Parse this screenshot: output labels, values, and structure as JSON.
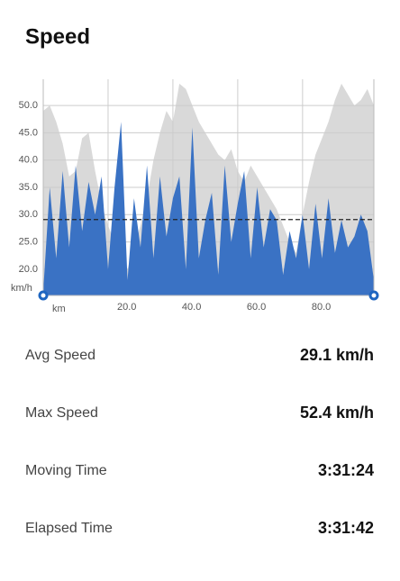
{
  "header": {
    "title": "Speed"
  },
  "chart_data": {
    "type": "area",
    "y_label": "km/h",
    "x_label": "km",
    "x": [
      0,
      2,
      4,
      6,
      8,
      10,
      12,
      14,
      16,
      18,
      20,
      22,
      24,
      26,
      28,
      30,
      32,
      34,
      36,
      38,
      40,
      42,
      44,
      46,
      48,
      50,
      52,
      54,
      56,
      58,
      60,
      62,
      64,
      66,
      68,
      70,
      72,
      74,
      76,
      78,
      80,
      82,
      84,
      86,
      88,
      90,
      92,
      94,
      96,
      98,
      100,
      102
    ],
    "series": [
      {
        "color": "#d9d9d9",
        "values": [
          49,
          50,
          47,
          43,
          37,
          38,
          44,
          45,
          38,
          32,
          28,
          25,
          22,
          20,
          24,
          28,
          33,
          40,
          45,
          49,
          47,
          54,
          53,
          50,
          47,
          45,
          43,
          41,
          40,
          42,
          38,
          36,
          39,
          37,
          35,
          33,
          31,
          28,
          25,
          23,
          30,
          36,
          41,
          44,
          47,
          51,
          54,
          52,
          50,
          51,
          53,
          50
        ]
      },
      {
        "color": "#3a72c4",
        "values": [
          16,
          35,
          22,
          38,
          24,
          39,
          27,
          36,
          30,
          37,
          20,
          35,
          47,
          18,
          33,
          24,
          39,
          22,
          37,
          26,
          33,
          37,
          20,
          46,
          22,
          29,
          34,
          19,
          39,
          25,
          32,
          38,
          22,
          35,
          24,
          31,
          29,
          19,
          27,
          22,
          30,
          20,
          32,
          22,
          33,
          23,
          29,
          24,
          26,
          30,
          27,
          18
        ]
      }
    ],
    "reference_line": 29.1,
    "xlim": [
      0,
      102
    ],
    "ylim": [
      15.2,
      54.8
    ],
    "xticks": [
      {
        "value": 20,
        "label": "20.0"
      },
      {
        "value": 40,
        "label": "40.0"
      },
      {
        "value": 60,
        "label": "60.0"
      },
      {
        "value": 80,
        "label": "80.0"
      }
    ],
    "yticks": [
      {
        "value": 20,
        "label": "20.0"
      },
      {
        "value": 25,
        "label": "25.0"
      },
      {
        "value": 30,
        "label": "30.0"
      },
      {
        "value": 35,
        "label": "35.0"
      },
      {
        "value": 40,
        "label": "40.0"
      },
      {
        "value": 45,
        "label": "45.0"
      },
      {
        "value": 50,
        "label": "50.0"
      }
    ],
    "grid": true
  },
  "stats": [
    {
      "label": "Avg Speed",
      "value": "29.1 km/h"
    },
    {
      "label": "Max Speed",
      "value": "52.4 km/h"
    },
    {
      "label": "Moving Time",
      "value": "3:31:24"
    },
    {
      "label": "Elapsed Time",
      "value": "3:31:42"
    }
  ]
}
